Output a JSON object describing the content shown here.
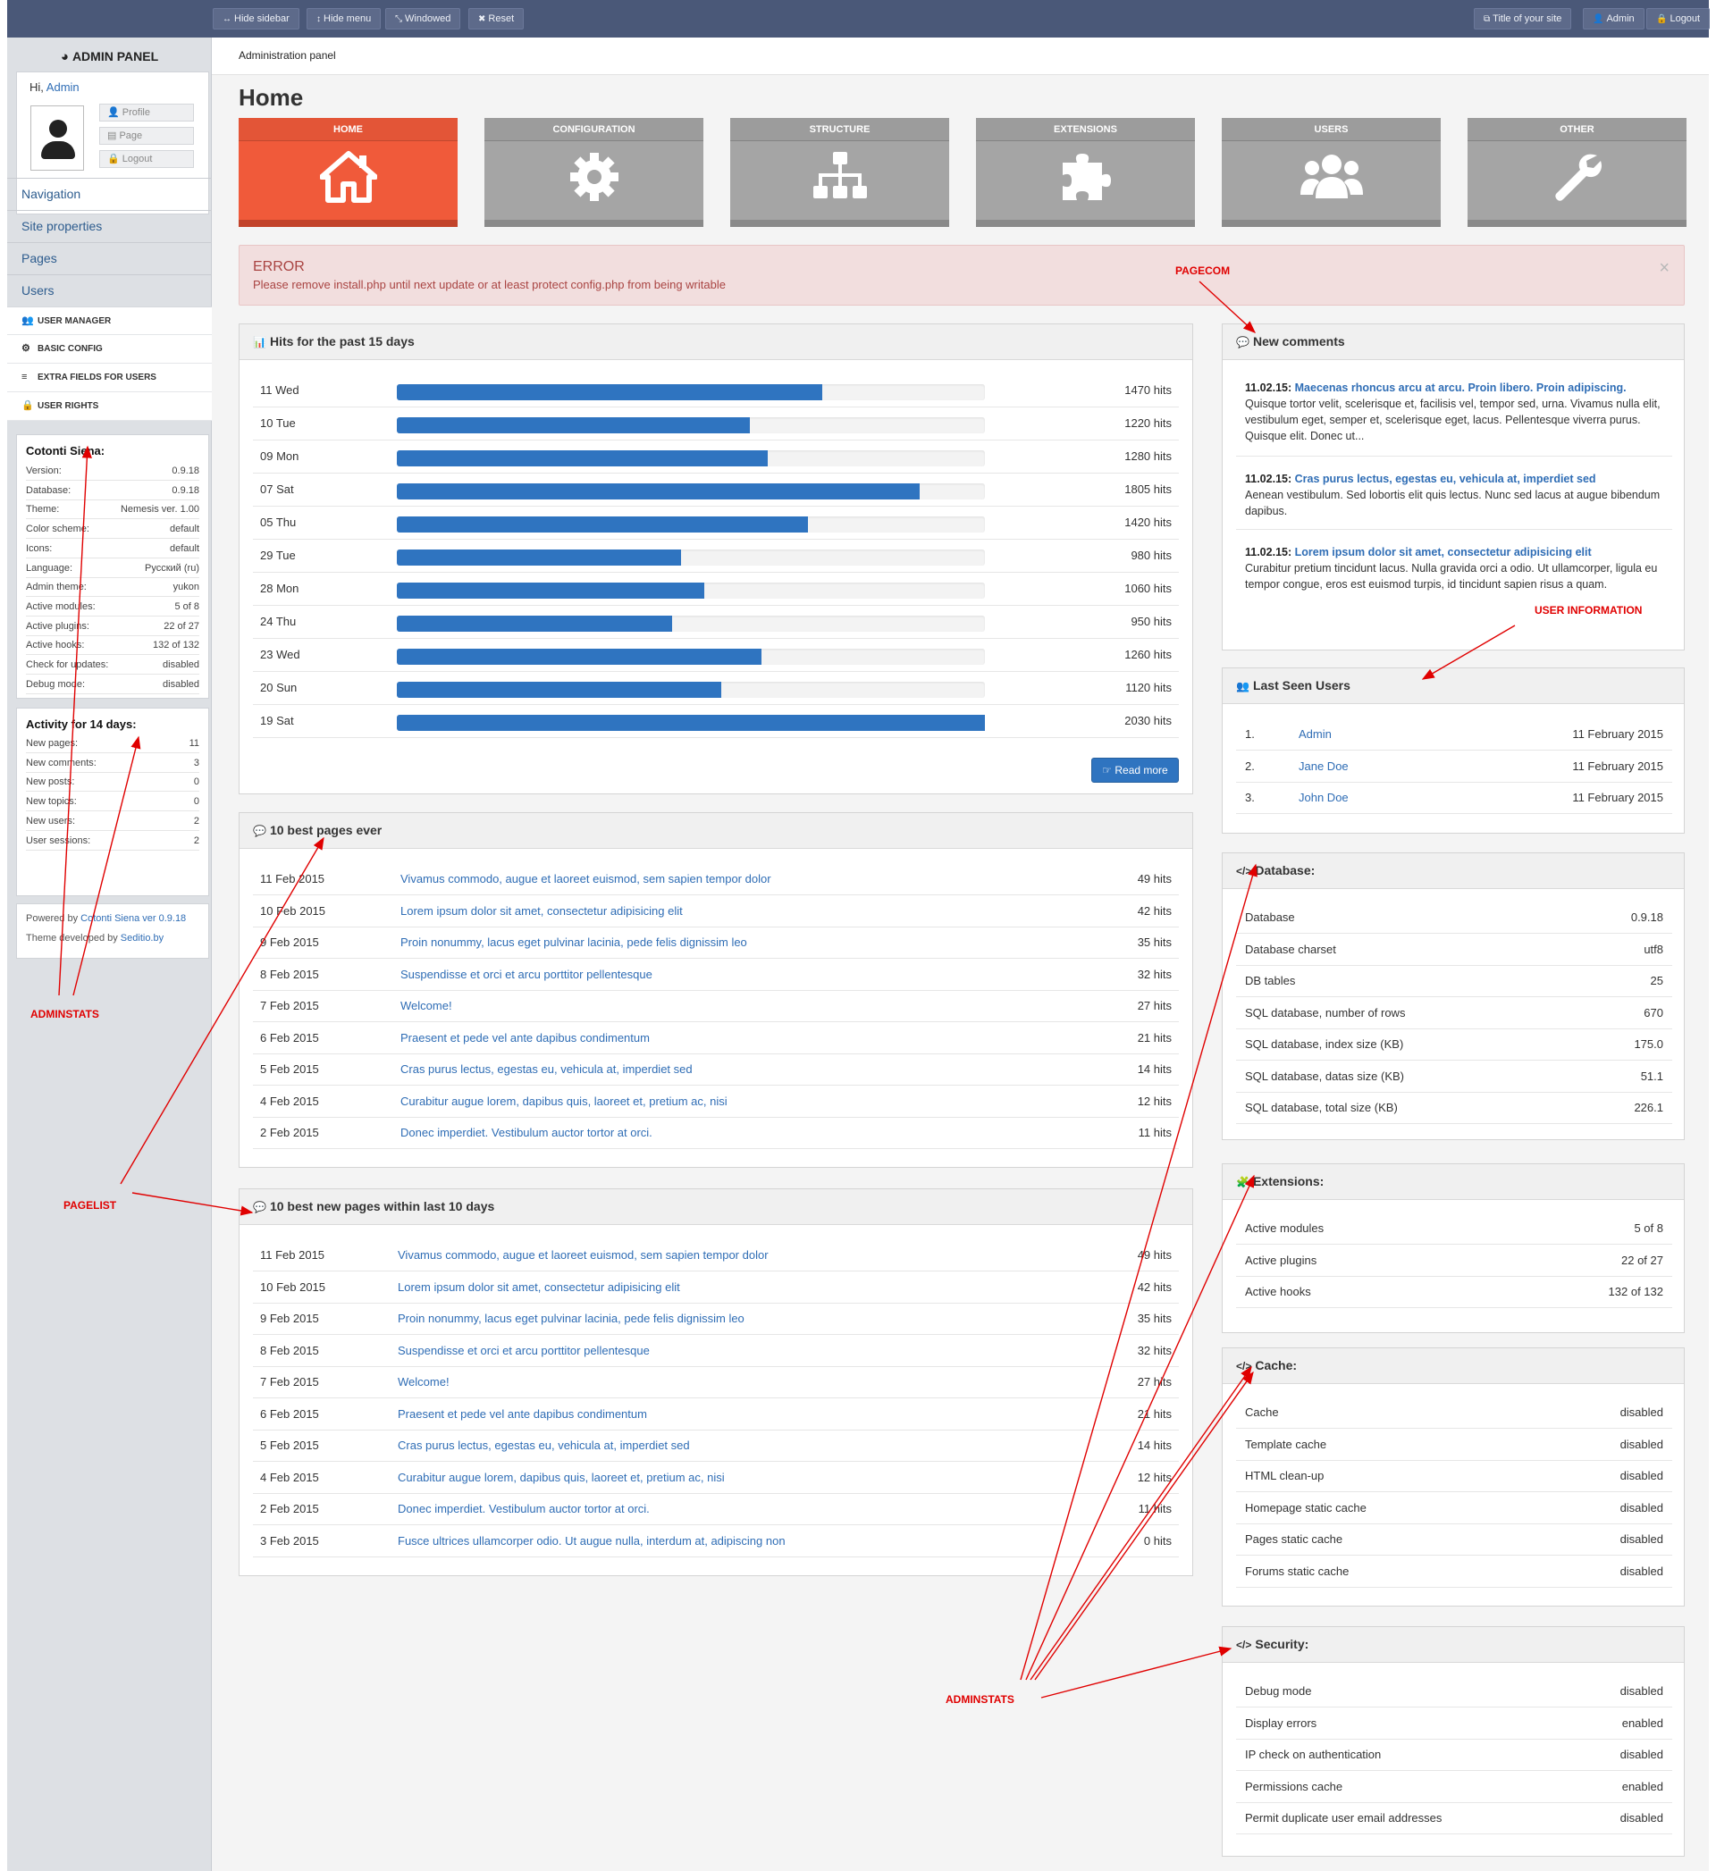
{
  "topbar": {
    "left_buttons": [
      {
        "icon": "↔",
        "label": "Hide sidebar"
      },
      {
        "icon": "↕",
        "label": "Hide menu"
      },
      {
        "icon": "⤡",
        "label": "Windowed"
      },
      {
        "icon": "✖",
        "label": "Reset"
      }
    ],
    "right_buttons": [
      {
        "icon": "⧉",
        "label": "Title of your site"
      },
      {
        "icon": "👤",
        "label": "Admin"
      },
      {
        "icon": "🔒",
        "label": "Logout"
      }
    ]
  },
  "sidebar": {
    "title": "ADMIN PANEL",
    "greeting": "Hi, ",
    "user_name": "Admin",
    "user_links": [
      {
        "icon": "👤",
        "label": "Profile"
      },
      {
        "icon": "▤",
        "label": "Page"
      },
      {
        "icon": "🔒",
        "label": "Logout"
      }
    ],
    "sections": [
      "Navigation",
      "Site properties",
      "Pages",
      "Users"
    ],
    "user_items": [
      {
        "icon": "👥",
        "label": "USER MANAGER"
      },
      {
        "icon": "⚙",
        "label": "BASIC CONFIG"
      },
      {
        "icon": "≡",
        "label": "EXTRA FIELDS FOR USERS"
      },
      {
        "icon": "🔒",
        "label": "USER RIGHTS"
      }
    ],
    "system": {
      "title": "Cotonti Siena:",
      "rows": [
        {
          "k": "Version:",
          "v": "0.9.18"
        },
        {
          "k": "Database:",
          "v": "0.9.18"
        },
        {
          "k": "Theme:",
          "v": "Nemesis ver. 1.00"
        },
        {
          "k": "Color scheme:",
          "v": "default"
        },
        {
          "k": "Icons:",
          "v": "default"
        },
        {
          "k": "Language:",
          "v": "Русский (ru)"
        },
        {
          "k": "Admin theme:",
          "v": "yukon"
        },
        {
          "k": "Active modules:",
          "v": "5 of 8"
        },
        {
          "k": "Active plugins:",
          "v": "22 of 27"
        },
        {
          "k": "Active hooks:",
          "v": "132 of 132"
        },
        {
          "k": "Check for updates:",
          "v": "disabled"
        },
        {
          "k": "Debug mode:",
          "v": "disabled"
        }
      ]
    },
    "activity": {
      "title": "Activity for 14 days:",
      "rows": [
        {
          "k": "New pages:",
          "v": "11"
        },
        {
          "k": "New comments:",
          "v": "3"
        },
        {
          "k": "New posts:",
          "v": "0"
        },
        {
          "k": "New topics:",
          "v": "0"
        },
        {
          "k": "New users:",
          "v": "2"
        },
        {
          "k": "User sessions:",
          "v": "2"
        }
      ]
    },
    "powered_prefix": "Powered by ",
    "powered_link": "Cotonti Siena ver 0.9.18",
    "theme_prefix": "Theme developed by ",
    "theme_link": "Seditio.by"
  },
  "breadcrumb": "Administration panel",
  "page_title": "Home",
  "tiles": [
    {
      "label": "HOME",
      "icon": "home-icon",
      "active": true
    },
    {
      "label": "CONFIGURATION",
      "icon": "gear-icon",
      "active": false
    },
    {
      "label": "STRUCTURE",
      "icon": "sitemap-icon",
      "active": false
    },
    {
      "label": "EXTENSIONS",
      "icon": "puzzle-icon",
      "active": false
    },
    {
      "label": "USERS",
      "icon": "users-icon",
      "active": false
    },
    {
      "label": "OTHER",
      "icon": "wrench-icon",
      "active": false
    }
  ],
  "alert": {
    "title": "ERROR",
    "text": "Please remove install.php until next update or at least protect config.php from being writable",
    "close": "×"
  },
  "hits_panel": {
    "title": "Hits for the past 15 days",
    "rows": [
      {
        "day": "11 Wed",
        "hits": 1470,
        "label": "1470 hits"
      },
      {
        "day": "10 Tue",
        "hits": 1220,
        "label": "1220 hits"
      },
      {
        "day": "09 Mon",
        "hits": 1280,
        "label": "1280 hits"
      },
      {
        "day": "07 Sat",
        "hits": 1805,
        "label": "1805 hits"
      },
      {
        "day": "05 Thu",
        "hits": 1420,
        "label": "1420 hits"
      },
      {
        "day": "29 Tue",
        "hits": 980,
        "label": "980 hits"
      },
      {
        "day": "28 Mon",
        "hits": 1060,
        "label": "1060 hits"
      },
      {
        "day": "24 Thu",
        "hits": 950,
        "label": "950 hits"
      },
      {
        "day": "23 Wed",
        "hits": 1260,
        "label": "1260 hits"
      },
      {
        "day": "20 Sun",
        "hits": 1120,
        "label": "1120 hits"
      },
      {
        "day": "19 Sat",
        "hits": 2030,
        "label": "2030 hits"
      }
    ],
    "max_hits": 2030,
    "read_more": "Read more"
  },
  "best_pages": {
    "title": "10 best pages ever",
    "rows": [
      {
        "date": "11 Feb 2015",
        "title": "Vivamus commodo, augue et laoreet euismod, sem sapien tempor dolor",
        "hits": "49 hits"
      },
      {
        "date": "10 Feb 2015",
        "title": "Lorem ipsum dolor sit amet, consectetur adipisicing elit",
        "hits": "42 hits"
      },
      {
        "date": "9 Feb 2015",
        "title": "Proin nonummy, lacus eget pulvinar lacinia, pede felis dignissim leo",
        "hits": "35 hits"
      },
      {
        "date": "8 Feb 2015",
        "title": "Suspendisse et orci et arcu porttitor pellentesque",
        "hits": "32 hits"
      },
      {
        "date": "7 Feb 2015",
        "title": "Welcome!",
        "hits": "27 hits"
      },
      {
        "date": "6 Feb 2015",
        "title": "Praesent et pede vel ante dapibus condimentum",
        "hits": "21 hits"
      },
      {
        "date": "5 Feb 2015",
        "title": "Cras purus lectus, egestas eu, vehicula at, imperdiet sed",
        "hits": "14 hits"
      },
      {
        "date": "4 Feb 2015",
        "title": "Curabitur augue lorem, dapibus quis, laoreet et, pretium ac, nisi",
        "hits": "12 hits"
      },
      {
        "date": "2 Feb 2015",
        "title": "Donec imperdiet. Vestibulum auctor tortor at orci.",
        "hits": "11 hits"
      }
    ]
  },
  "best_new_pages": {
    "title": "10 best new pages within last 10 days",
    "rows": [
      {
        "date": "11 Feb 2015",
        "title": "Vivamus commodo, augue et laoreet euismod, sem sapien tempor dolor",
        "hits": "49 hits"
      },
      {
        "date": "10 Feb 2015",
        "title": "Lorem ipsum dolor sit amet, consectetur adipisicing elit",
        "hits": "42 hits"
      },
      {
        "date": "9 Feb 2015",
        "title": "Proin nonummy, lacus eget pulvinar lacinia, pede felis dignissim leo",
        "hits": "35 hits"
      },
      {
        "date": "8 Feb 2015",
        "title": "Suspendisse et orci et arcu porttitor pellentesque",
        "hits": "32 hits"
      },
      {
        "date": "7 Feb 2015",
        "title": "Welcome!",
        "hits": "27 hits"
      },
      {
        "date": "6 Feb 2015",
        "title": "Praesent et pede vel ante dapibus condimentum",
        "hits": "21 hits"
      },
      {
        "date": "5 Feb 2015",
        "title": "Cras purus lectus, egestas eu, vehicula at, imperdiet sed",
        "hits": "14 hits"
      },
      {
        "date": "4 Feb 2015",
        "title": "Curabitur augue lorem, dapibus quis, laoreet et, pretium ac, nisi",
        "hits": "12 hits"
      },
      {
        "date": "2 Feb 2015",
        "title": "Donec imperdiet. Vestibulum auctor tortor at orci.",
        "hits": "11 hits"
      },
      {
        "date": "3 Feb 2015",
        "title": "Fusce ultrices ullamcorper odio. Ut augue nulla, interdum at, adipiscing non",
        "hits": "0 hits"
      }
    ]
  },
  "comments": {
    "title": "New comments",
    "items": [
      {
        "date": "11.02.15:",
        "title": "Maecenas rhoncus arcu at arcu. Proin libero. Proin adipiscing.",
        "text": "Quisque tortor velit, scelerisque et, facilisis vel, tempor sed, urna. Vivamus nulla elit, vestibulum eget, semper et, scelerisque eget, lacus. Pellentesque viverra purus. Quisque elit. Donec ut..."
      },
      {
        "date": "11.02.15:",
        "title": "Cras purus lectus, egestas eu, vehicula at, imperdiet sed",
        "text": "Aenean vestibulum. Sed lobortis elit quis lectus. Nunc sed lacus at augue bibendum dapibus."
      },
      {
        "date": "11.02.15:",
        "title": "Lorem ipsum dolor sit amet, consectetur adipisicing elit",
        "text": "Curabitur pretium tincidunt lacus. Nulla gravida orci a odio. Ut ullamcorper, ligula eu tempor congue, eros est euismod turpis, id tincidunt sapien risus a quam."
      }
    ]
  },
  "last_seen": {
    "title": "Last Seen Users",
    "rows": [
      {
        "num": "1.",
        "name": "Admin",
        "date": "11 February 2015"
      },
      {
        "num": "2.",
        "name": "Jane Doe",
        "date": "11 February 2015"
      },
      {
        "num": "3.",
        "name": "John Doe",
        "date": "11 February 2015"
      }
    ]
  },
  "database": {
    "title": "Database:",
    "rows": [
      {
        "k": "Database",
        "v": "0.9.18"
      },
      {
        "k": "Database charset",
        "v": "utf8"
      },
      {
        "k": "DB tables",
        "v": "25"
      },
      {
        "k": "SQL database, number of rows",
        "v": "670"
      },
      {
        "k": "SQL database, index size (KB)",
        "v": "175.0"
      },
      {
        "k": "SQL database, datas size (KB)",
        "v": "51.1"
      },
      {
        "k": "SQL database, total size (KB)",
        "v": "226.1"
      }
    ]
  },
  "extensions": {
    "title": "Extensions:",
    "rows": [
      {
        "k": "Active modules",
        "v": "5 of 8"
      },
      {
        "k": "Active plugins",
        "v": "22 of 27"
      },
      {
        "k": "Active hooks",
        "v": "132 of 132"
      }
    ]
  },
  "cache": {
    "title": "Cache:",
    "rows": [
      {
        "k": "Cache",
        "v": "disabled"
      },
      {
        "k": "Template cache",
        "v": "disabled"
      },
      {
        "k": "HTML clean-up",
        "v": "disabled"
      },
      {
        "k": "Homepage static cache",
        "v": "disabled"
      },
      {
        "k": "Pages static cache",
        "v": "disabled"
      },
      {
        "k": "Forums static cache",
        "v": "disabled"
      }
    ]
  },
  "security": {
    "title": "Security:",
    "rows": [
      {
        "k": "Debug mode",
        "v": "disabled"
      },
      {
        "k": "Display errors",
        "v": "enabled"
      },
      {
        "k": "IP check on authentication",
        "v": "disabled"
      },
      {
        "k": "Permissions cache",
        "v": "enabled"
      },
      {
        "k": "Permit duplicate user email addresses",
        "v": "disabled"
      }
    ]
  },
  "annotations": {
    "pagecom": "PAGECOM",
    "user_information": "USER INFORMATION",
    "adminstats_left": "ADMINSTATS",
    "pagelist": "PAGELIST",
    "adminstats_right": "ADMINSTATS"
  },
  "colors": {
    "topbar": "#4a5878",
    "tile_active": "#f05a3a",
    "tile": "#a5a5a5",
    "bar": "#2f74c0",
    "link": "#2f6db5",
    "alert_bg": "#f2dede",
    "alert_text": "#a94442",
    "annotation": "#e00000"
  }
}
